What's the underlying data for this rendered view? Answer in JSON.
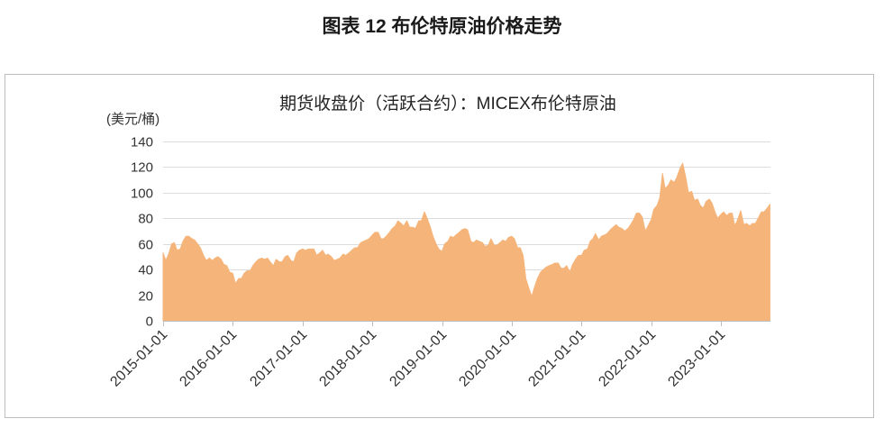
{
  "header": {
    "figure_title": "图表 12 布伦特原油价格走势"
  },
  "chart_data": {
    "type": "area",
    "title": "期货收盘价（活跃合约）：MICEX布伦特原油",
    "xlabel": "",
    "ylabel": "(美元/桶)",
    "ylim": [
      0,
      140
    ],
    "yticks": [
      0,
      20,
      40,
      60,
      80,
      100,
      120,
      140
    ],
    "xticks": [
      "2015-01-01",
      "2016-01-01",
      "2017-01-01",
      "2018-01-01",
      "2019-01-01",
      "2020-01-01",
      "2021-01-01",
      "2022-01-01",
      "2023-01-01"
    ],
    "grid": true,
    "series": [
      {
        "color": "#F5B47A",
        "x": [
          "2015-01-01",
          "2015-01-15",
          "2015-02-01",
          "2015-02-15",
          "2015-03-01",
          "2015-03-15",
          "2015-04-01",
          "2015-04-15",
          "2015-05-01",
          "2015-05-15",
          "2015-06-01",
          "2015-06-15",
          "2015-07-01",
          "2015-07-15",
          "2015-08-01",
          "2015-08-15",
          "2015-09-01",
          "2015-09-15",
          "2015-10-01",
          "2015-10-15",
          "2015-11-01",
          "2015-11-15",
          "2015-12-01",
          "2015-12-15",
          "2016-01-01",
          "2016-01-15",
          "2016-02-01",
          "2016-02-15",
          "2016-03-01",
          "2016-03-15",
          "2016-04-01",
          "2016-04-15",
          "2016-05-01",
          "2016-05-15",
          "2016-06-01",
          "2016-06-15",
          "2016-07-01",
          "2016-07-15",
          "2016-08-01",
          "2016-08-15",
          "2016-09-01",
          "2016-09-15",
          "2016-10-01",
          "2016-10-15",
          "2016-11-01",
          "2016-11-15",
          "2016-12-01",
          "2016-12-15",
          "2017-01-01",
          "2017-01-15",
          "2017-02-01",
          "2017-02-15",
          "2017-03-01",
          "2017-03-15",
          "2017-04-01",
          "2017-04-15",
          "2017-05-01",
          "2017-05-15",
          "2017-06-01",
          "2017-06-15",
          "2017-07-01",
          "2017-07-15",
          "2017-08-01",
          "2017-08-15",
          "2017-09-01",
          "2017-09-15",
          "2017-10-01",
          "2017-10-15",
          "2017-11-01",
          "2017-11-15",
          "2017-12-01",
          "2017-12-15",
          "2018-01-01",
          "2018-01-15",
          "2018-02-01",
          "2018-02-15",
          "2018-03-01",
          "2018-03-15",
          "2018-04-01",
          "2018-04-15",
          "2018-05-01",
          "2018-05-15",
          "2018-06-01",
          "2018-06-15",
          "2018-07-01",
          "2018-07-15",
          "2018-08-01",
          "2018-08-15",
          "2018-09-01",
          "2018-09-15",
          "2018-10-01",
          "2018-10-15",
          "2018-11-01",
          "2018-11-15",
          "2018-12-01",
          "2018-12-15",
          "2019-01-01",
          "2019-01-15",
          "2019-02-01",
          "2019-02-15",
          "2019-03-01",
          "2019-03-15",
          "2019-04-01",
          "2019-04-15",
          "2019-05-01",
          "2019-05-15",
          "2019-06-01",
          "2019-06-15",
          "2019-07-01",
          "2019-07-15",
          "2019-08-01",
          "2019-08-15",
          "2019-09-01",
          "2019-09-15",
          "2019-10-01",
          "2019-10-15",
          "2019-11-01",
          "2019-11-15",
          "2019-12-01",
          "2019-12-15",
          "2020-01-01",
          "2020-01-15",
          "2020-02-01",
          "2020-02-15",
          "2020-03-01",
          "2020-03-15",
          "2020-04-01",
          "2020-04-15",
          "2020-05-01",
          "2020-05-15",
          "2020-06-01",
          "2020-06-15",
          "2020-07-01",
          "2020-07-15",
          "2020-08-01",
          "2020-08-15",
          "2020-09-01",
          "2020-09-15",
          "2020-10-01",
          "2020-10-15",
          "2020-11-01",
          "2020-11-15",
          "2020-12-01",
          "2020-12-15",
          "2021-01-01",
          "2021-01-15",
          "2021-02-01",
          "2021-02-15",
          "2021-03-01",
          "2021-03-15",
          "2021-04-01",
          "2021-04-15",
          "2021-05-01",
          "2021-05-15",
          "2021-06-01",
          "2021-06-15",
          "2021-07-01",
          "2021-07-15",
          "2021-08-01",
          "2021-08-15",
          "2021-09-01",
          "2021-09-15",
          "2021-10-01",
          "2021-10-15",
          "2021-11-01",
          "2021-11-15",
          "2021-12-01",
          "2021-12-15",
          "2022-01-01",
          "2022-01-15",
          "2022-02-01",
          "2022-02-15",
          "2022-03-01",
          "2022-03-15",
          "2022-04-01",
          "2022-04-15",
          "2022-05-01",
          "2022-05-15",
          "2022-06-01",
          "2022-06-15",
          "2022-07-01",
          "2022-07-15",
          "2022-08-01",
          "2022-08-15",
          "2022-09-01",
          "2022-09-15",
          "2022-10-01",
          "2022-10-15",
          "2022-11-01",
          "2022-11-15",
          "2022-12-01",
          "2022-12-15",
          "2023-01-01",
          "2023-01-15",
          "2023-02-01",
          "2023-02-15",
          "2023-03-01",
          "2023-03-15",
          "2023-04-01",
          "2023-04-15",
          "2023-05-01",
          "2023-05-15",
          "2023-06-01",
          "2023-06-15",
          "2023-07-01",
          "2023-07-15",
          "2023-08-01",
          "2023-08-15",
          "2023-09-01",
          "2023-09-15"
        ],
        "y": [
          53,
          47,
          53,
          60,
          61,
          55,
          56,
          62,
          66,
          66,
          64,
          63,
          60,
          57,
          51,
          47,
          49,
          47,
          49,
          50,
          48,
          44,
          43,
          38,
          37,
          29,
          33,
          33,
          37,
          39,
          39,
          43,
          46,
          48,
          49,
          48,
          49,
          46,
          43,
          48,
          46,
          46,
          50,
          51,
          47,
          46,
          53,
          55,
          56,
          55,
          56,
          56,
          56,
          51,
          53,
          55,
          51,
          52,
          50,
          47,
          48,
          49,
          52,
          51,
          53,
          55,
          57,
          57,
          61,
          62,
          63,
          64,
          67,
          69,
          69,
          64,
          64,
          66,
          69,
          72,
          74,
          78,
          76,
          74,
          78,
          73,
          73,
          72,
          78,
          78,
          85,
          80,
          73,
          66,
          60,
          56,
          54,
          60,
          62,
          66,
          65,
          67,
          69,
          71,
          72,
          71,
          62,
          61,
          63,
          62,
          61,
          58,
          59,
          64,
          59,
          59,
          61,
          63,
          62,
          65,
          66,
          64,
          57,
          57,
          51,
          33,
          25,
          19,
          27,
          33,
          38,
          40,
          42,
          43,
          44,
          45,
          45,
          41,
          41,
          43,
          38,
          44,
          48,
          51,
          51,
          55,
          56,
          62,
          64,
          68,
          63,
          66,
          67,
          68,
          71,
          73,
          75,
          73,
          72,
          70,
          72,
          75,
          79,
          84,
          84,
          81,
          70,
          74,
          79,
          87,
          90,
          96,
          115,
          103,
          106,
          110,
          108,
          112,
          119,
          123,
          112,
          100,
          101,
          94,
          95,
          90,
          88,
          93,
          95,
          92,
          85,
          80,
          83,
          85,
          82,
          84,
          84,
          74,
          80,
          86,
          75,
          76,
          74,
          76,
          76,
          80,
          85,
          85,
          88,
          91
        ]
      }
    ]
  }
}
